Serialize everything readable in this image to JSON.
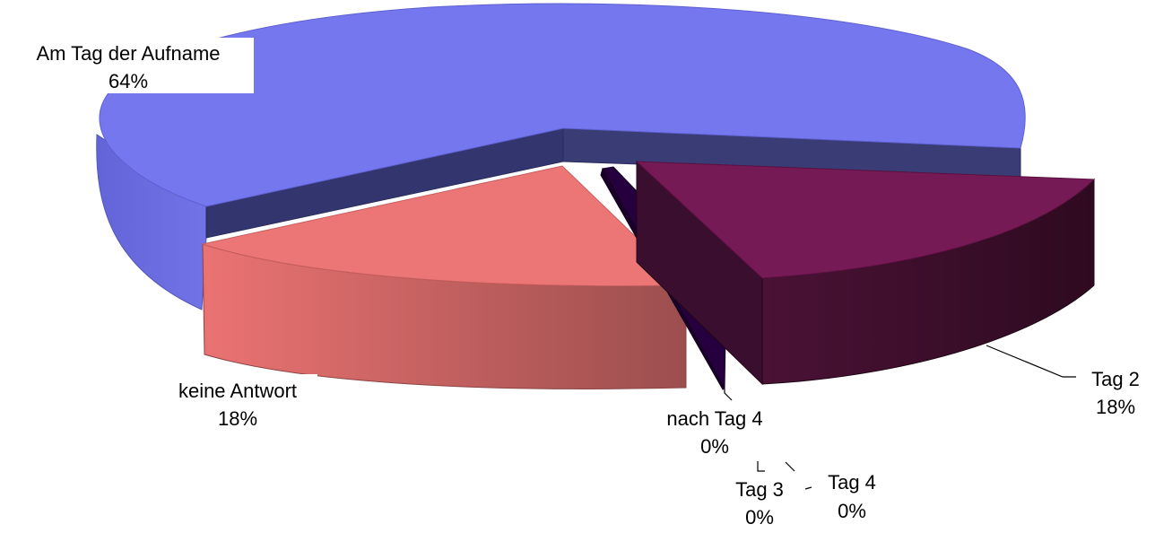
{
  "chart_data": {
    "type": "pie",
    "style": "3d-exploded",
    "categories": [
      "Am Tag der Aufname",
      "Tag 2",
      "Tag 3",
      "Tag 4",
      "nach Tag 4",
      "keine Antwort"
    ],
    "values": [
      64,
      18,
      0,
      0,
      0,
      18
    ],
    "value_labels": [
      "64%",
      "18%",
      "0%",
      "0%",
      "0%",
      "18%"
    ],
    "colors": {
      "Am Tag der Aufname": "#7577EE",
      "Tag 2": "#761A55",
      "Tag 3": "#3A1060",
      "Tag 4": "#2A0A40",
      "nach Tag 4": "#26003E",
      "keine Antwort": "#EC7675"
    },
    "legend": "none"
  }
}
